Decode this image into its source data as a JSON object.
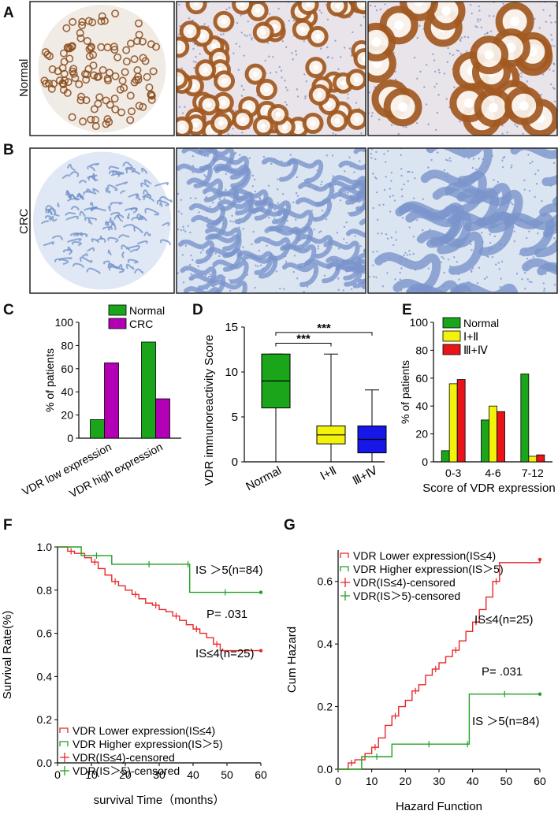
{
  "panels": {
    "A": "A",
    "B": "B",
    "C": "C",
    "D": "D",
    "E": "E",
    "F": "F",
    "G": "G"
  },
  "micrograph_rows": [
    {
      "label": "Normal",
      "stain": "brown-positive"
    },
    {
      "label": "CRC",
      "stain": "blue-negative"
    }
  ],
  "colors": {
    "normal": "#1aa51a",
    "crc": "#b400b4",
    "stage12": "#f2f20a",
    "stage34": "#e8141a",
    "iv_box": "#1717e8",
    "km_low": "#e8282a",
    "km_high": "#22a022",
    "brown": "#8a4a18",
    "tissue_blue": "#6f8fc8"
  },
  "chart_data": [
    {
      "panel": "C",
      "type": "bar",
      "categories": [
        "VDR low expression",
        "VDR high expression"
      ],
      "series": [
        {
          "name": "Normal",
          "values": [
            16,
            83
          ]
        },
        {
          "name": "CRC",
          "values": [
            65,
            34
          ]
        }
      ],
      "ylabel": "% of patients",
      "ylim": [
        0,
        100
      ],
      "yticks": [
        "0",
        "20",
        "40",
        "60",
        "80",
        "100"
      ],
      "legend": "top"
    },
    {
      "panel": "D",
      "type": "box",
      "categories": [
        "Normal",
        "Ⅰ+Ⅱ",
        "Ⅲ+Ⅳ"
      ],
      "boxes": [
        {
          "min": 0,
          "q1": 6,
          "median": 9,
          "q3": 12,
          "max": 12
        },
        {
          "min": 0,
          "q1": 2,
          "median": 3,
          "q3": 4,
          "max": 12
        },
        {
          "min": 0,
          "q1": 1,
          "median": 2.5,
          "q3": 4,
          "max": 8
        }
      ],
      "ylabel": "VDR immunoreactivity Score",
      "ylim": [
        0,
        15
      ],
      "yticks": [
        "0",
        "5",
        "10",
        "15"
      ],
      "significance": [
        "***",
        "***"
      ]
    },
    {
      "panel": "E",
      "type": "bar",
      "categories": [
        "0-3",
        "4-6",
        "7-12"
      ],
      "series": [
        {
          "name": "Normal",
          "values": [
            8,
            30,
            63
          ]
        },
        {
          "name": "Ⅰ+Ⅱ",
          "values": [
            56,
            40,
            4
          ]
        },
        {
          "name": "Ⅲ+Ⅳ",
          "values": [
            59,
            36,
            5
          ]
        }
      ],
      "xlabel": "Score of VDR expression",
      "ylabel": "% of patients",
      "ylim": [
        0,
        100
      ],
      "yticks": [
        "0",
        "20",
        "40",
        "60",
        "80",
        "100"
      ],
      "legend": "top-left"
    },
    {
      "panel": "F",
      "type": "line",
      "xlabel": "survival Time（months）",
      "ylabel": "Survival Rate(%)",
      "xlim": [
        0,
        60
      ],
      "ylim": [
        0,
        1
      ],
      "xticks": [
        "0",
        "10",
        "20",
        "30",
        "40",
        "50",
        "60"
      ],
      "yticks": [
        "0.0",
        "0.2",
        "0.4",
        "0.6",
        "0.8",
        "1.0"
      ],
      "annotations": [
        "IS ＞5(n=84)",
        "P= .031",
        "IS≤4(n=25)"
      ],
      "legend": [
        "VDR Lower expression(IS≤4)",
        "VDR Higher expression(IS＞5)",
        "VDR(IS≤4)-censored",
        "VDR(IS＞5)-censored"
      ],
      "series": [
        {
          "name": "VDR Lower expression(IS≤4)",
          "x": [
            0,
            3,
            5,
            8,
            10,
            12,
            14,
            16,
            18,
            20,
            22,
            24,
            26,
            28,
            30,
            32,
            34,
            36,
            38,
            40,
            42,
            44,
            46,
            48,
            60
          ],
          "y": [
            1.0,
            0.98,
            0.97,
            0.95,
            0.93,
            0.9,
            0.87,
            0.84,
            0.82,
            0.8,
            0.78,
            0.76,
            0.74,
            0.73,
            0.71,
            0.7,
            0.68,
            0.66,
            0.64,
            0.62,
            0.6,
            0.58,
            0.55,
            0.52,
            0.52
          ]
        },
        {
          "name": "VDR Higher expression(IS＞5)",
          "x": [
            0,
            7,
            16,
            38,
            39,
            60
          ],
          "y": [
            1.0,
            0.96,
            0.92,
            0.92,
            0.79,
            0.79
          ]
        }
      ]
    },
    {
      "panel": "G",
      "type": "line",
      "xlabel": "Hazard Function",
      "ylabel": "Cum Hazard",
      "xlim": [
        0,
        60
      ],
      "ylim": [
        0,
        0.7
      ],
      "xticks": [
        "0",
        "10",
        "20",
        "30",
        "40",
        "50",
        "60"
      ],
      "yticks": [
        "0.0",
        "0.2",
        "0.4",
        "0.6"
      ],
      "annotations": [
        "IS≤4(n=25)",
        "P= .031",
        "IS ＞5(n=84)"
      ],
      "legend": [
        "VDR Lower expression(IS≤4)",
        "VDR Higher expression(IS＞5)",
        "VDR(IS≤4)-censored",
        "VDR(IS＞5)-censored"
      ],
      "series": [
        {
          "name": "VDR Lower expression(IS≤4)",
          "x": [
            0,
            3,
            5,
            8,
            10,
            12,
            14,
            16,
            18,
            20,
            22,
            24,
            26,
            28,
            30,
            32,
            34,
            36,
            38,
            40,
            42,
            44,
            46,
            48,
            60
          ],
          "y": [
            0.0,
            0.02,
            0.03,
            0.05,
            0.07,
            0.1,
            0.14,
            0.17,
            0.2,
            0.22,
            0.25,
            0.27,
            0.3,
            0.32,
            0.34,
            0.36,
            0.38,
            0.41,
            0.44,
            0.47,
            0.51,
            0.55,
            0.6,
            0.66,
            0.67
          ]
        },
        {
          "name": "VDR Higher expression(IS＞5)",
          "x": [
            0,
            7,
            16,
            38,
            39,
            60
          ],
          "y": [
            0.0,
            0.04,
            0.08,
            0.08,
            0.24,
            0.24
          ]
        }
      ]
    }
  ]
}
